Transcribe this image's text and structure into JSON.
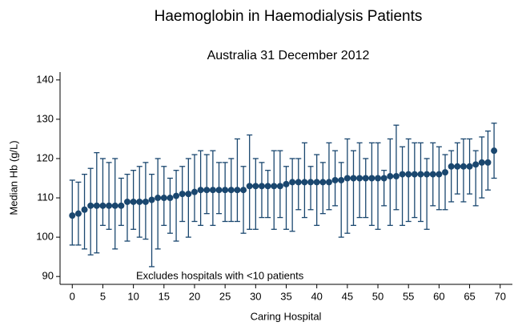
{
  "chart_data": {
    "type": "errorbar",
    "title": "Haemoglobin in Haemodialysis Patients",
    "subtitle": "Australia 31 December 2012",
    "x_label": "Caring Hospital",
    "y_label": "Median Hb (g/L)",
    "annotation": "Excludes hospitals with <10 patients",
    "x": [
      0,
      1,
      2,
      3,
      4,
      5,
      6,
      7,
      8,
      9,
      10,
      11,
      12,
      13,
      14,
      15,
      16,
      17,
      18,
      19,
      20,
      21,
      22,
      23,
      24,
      25,
      26,
      27,
      28,
      29,
      30,
      31,
      32,
      33,
      34,
      35,
      36,
      37,
      38,
      39,
      40,
      41,
      42,
      43,
      44,
      45,
      46,
      47,
      48,
      49,
      50,
      51,
      52,
      53,
      54,
      55,
      56,
      57,
      58,
      59,
      60,
      61,
      62,
      63,
      64,
      65,
      66,
      67,
      68,
      69
    ],
    "series": [
      {
        "color": "#1a476f",
        "values": [
          105.5,
          106,
          107,
          108,
          108,
          108,
          108,
          108,
          108,
          109,
          109,
          109,
          109,
          109.5,
          110,
          110,
          110,
          110.5,
          111,
          111,
          111.5,
          112,
          112,
          112,
          112,
          112,
          112,
          112,
          112,
          113,
          113,
          113,
          113,
          113,
          113,
          113.5,
          114,
          114,
          114,
          114,
          114,
          114,
          114,
          114.5,
          114.5,
          115,
          115,
          115,
          115,
          115,
          115,
          115,
          115.5,
          115.5,
          116,
          116,
          116,
          116,
          116,
          116,
          116,
          116.5,
          118,
          118,
          118,
          118,
          118.5,
          119,
          119,
          122
        ],
        "lower": [
          98,
          98,
          97,
          95.5,
          96,
          103,
          102,
          97,
          103,
          99,
          102,
          100,
          99.5,
          92.5,
          97,
          103,
          101,
          99,
          104,
          100,
          104,
          103,
          106,
          103,
          106,
          104,
          104,
          104,
          101,
          102,
          102,
          105,
          105,
          102,
          105,
          102,
          101.5,
          107,
          105,
          107,
          103,
          106,
          107,
          108,
          100,
          101,
          103,
          105,
          105,
          103,
          102,
          108,
          103,
          107,
          103,
          104,
          105,
          104,
          102,
          108,
          107,
          107,
          109,
          111,
          109,
          111,
          108,
          110,
          112,
          115
        ],
        "upper": [
          114.5,
          114,
          116,
          117.5,
          121.5,
          120,
          119,
          120,
          115,
          116,
          117,
          118,
          119,
          116,
          120,
          118,
          115,
          117,
          118,
          120,
          121,
          122,
          121,
          122,
          119,
          119,
          120,
          125,
          118,
          126,
          120,
          119,
          117,
          122,
          122,
          118,
          120,
          120,
          124,
          118,
          121,
          119,
          124,
          122,
          119,
          125,
          122,
          124,
          120,
          124,
          124,
          117,
          125,
          128.5,
          123,
          125,
          124,
          124,
          120,
          124,
          123,
          121,
          122,
          124,
          125,
          125,
          122,
          125.5,
          127,
          129
        ]
      }
    ],
    "xlim": [
      -2,
      72
    ],
    "xticks": [
      0,
      5,
      10,
      15,
      20,
      25,
      30,
      35,
      40,
      45,
      50,
      55,
      60,
      65,
      70
    ],
    "ylim": [
      88,
      142
    ],
    "yticks": [
      90,
      100,
      110,
      120,
      130,
      140
    ]
  }
}
